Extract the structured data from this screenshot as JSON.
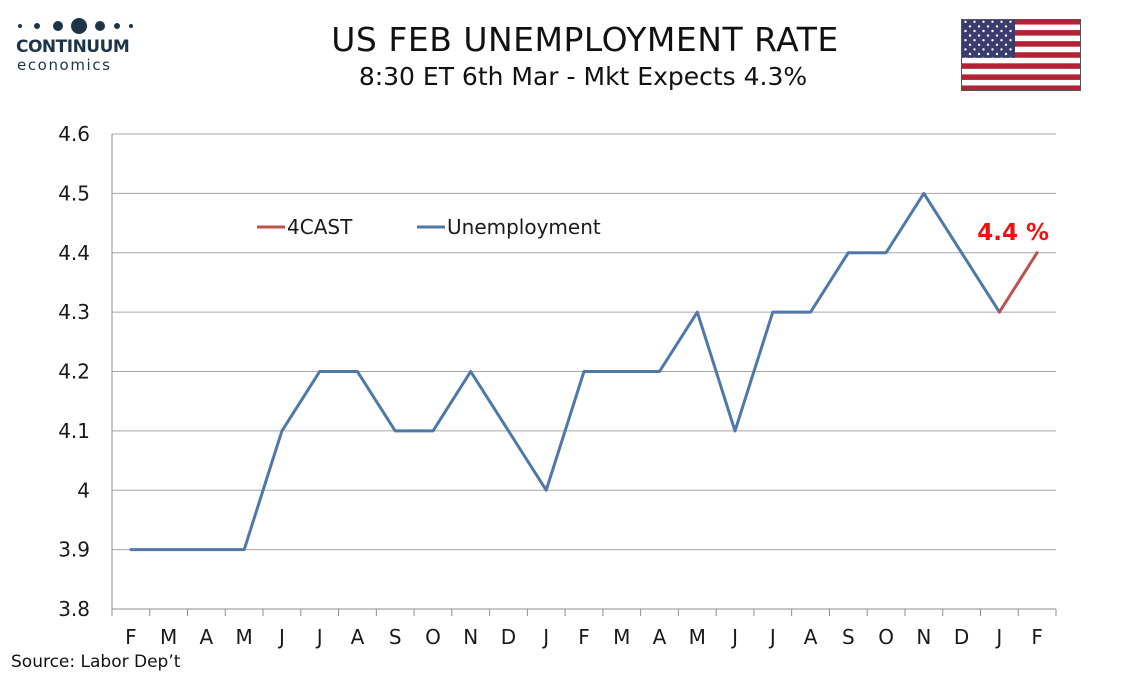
{
  "brand": {
    "name": "CONTINUUM",
    "sub": "economics"
  },
  "header": {
    "title": "US FEB UNEMPLOYMENT RATE",
    "subtitle": "8:30 ET 6th Mar - Mkt Expects 4.3%"
  },
  "flag_icon": "us-flag-icon",
  "colors": {
    "unemployment": "#4f78a8",
    "forecast": "#c0504d",
    "forecast_label": "#ee1111",
    "gridline": "#a6a6a6",
    "logo": "#1e3548"
  },
  "chart_data": {
    "type": "line",
    "categories": [
      "F",
      "M",
      "A",
      "M",
      "J",
      "J",
      "A",
      "S",
      "O",
      "N",
      "D",
      "J",
      "F",
      "M",
      "A",
      "M",
      "J",
      "J",
      "A",
      "S",
      "O",
      "N",
      "D",
      "J",
      "F"
    ],
    "series": [
      {
        "name": "Unemployment",
        "color": "#4f78a8",
        "values": [
          3.9,
          3.9,
          3.9,
          3.9,
          4.1,
          4.2,
          4.2,
          4.1,
          4.1,
          4.2,
          4.1,
          4.0,
          4.2,
          4.2,
          4.2,
          4.3,
          4.1,
          4.3,
          4.3,
          4.4,
          4.4,
          4.5,
          4.4,
          4.3,
          null
        ]
      },
      {
        "name": "4CAST",
        "color": "#c0504d",
        "values": [
          null,
          null,
          null,
          null,
          null,
          null,
          null,
          null,
          null,
          null,
          null,
          null,
          null,
          null,
          null,
          null,
          null,
          null,
          null,
          null,
          null,
          null,
          null,
          4.3,
          4.4
        ]
      }
    ],
    "ylim": [
      3.8,
      4.6
    ],
    "yticks": [
      "3.8",
      "3.9",
      "4",
      "4.1",
      "4.2",
      "4.3",
      "4.4",
      "4.5",
      "4.6"
    ],
    "grid": true,
    "legend": [
      "4CAST",
      "Unemployment"
    ],
    "legend_position": "top-left",
    "annotation": "4.4 %",
    "source": "Source: Labor Dep’t"
  }
}
